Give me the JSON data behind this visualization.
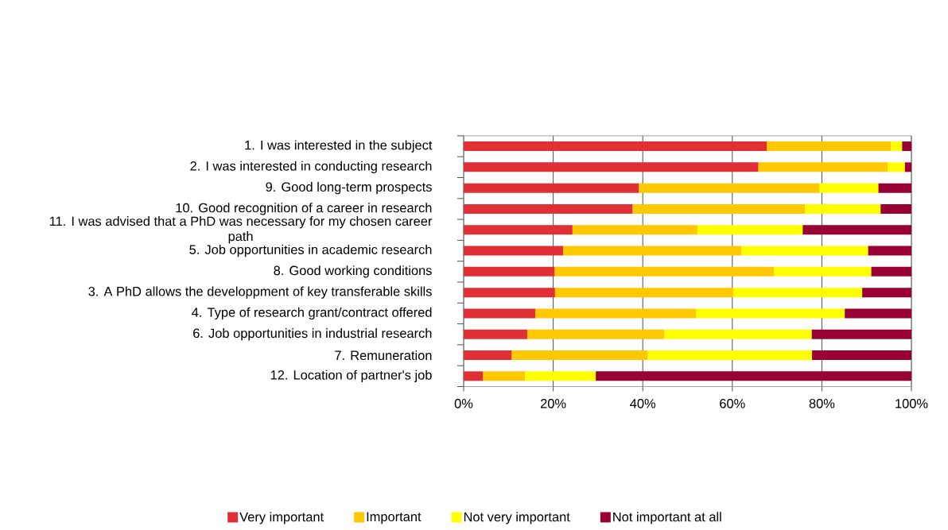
{
  "chart_data": {
    "type": "bar",
    "orientation": "horizontal",
    "stacked": true,
    "categories": [
      "1. I was interested in the subject",
      "2. I was interested in conducting research",
      "9. Good long-term prospects",
      "10. Good recognition of a career in research",
      "11. I was advised that a PhD was necessary for my chosen career path",
      "5. Job opportunities in academic research",
      "8. Good working conditions",
      "3. A PhD allows the developpment of key transferable skills",
      "4. Type of research grant/contract offered",
      "6. Job opportunities in industrial research",
      "7. Remuneration",
      "12. Location of partner's job"
    ],
    "series": [
      {
        "name": "Very important",
        "color": "#e03036",
        "values": [
          67.7,
          65.8,
          39.1,
          37.7,
          24.3,
          22.2,
          20.3,
          20.4,
          16.0,
          14.2,
          10.7,
          4.3
        ]
      },
      {
        "name": "Important",
        "color": "#ffc800",
        "values": [
          27.7,
          28.9,
          40.3,
          38.5,
          27.9,
          39.8,
          49.0,
          39.8,
          35.9,
          30.6,
          30.4,
          9.4
        ]
      },
      {
        "name": "Not very important",
        "color": "#ffff00",
        "values": [
          2.5,
          3.8,
          13.2,
          16.9,
          23.5,
          28.3,
          21.7,
          28.8,
          33.2,
          32.9,
          36.7,
          15.8
        ]
      },
      {
        "name": "Not important at all",
        "color": "#990033",
        "values": [
          2.1,
          1.5,
          7.4,
          6.9,
          24.3,
          9.7,
          9.0,
          11.0,
          14.9,
          22.3,
          22.2,
          70.5
        ]
      }
    ],
    "xlim": [
      0,
      100
    ],
    "xticks": [
      {
        "value": 0,
        "label": "0%"
      },
      {
        "value": 20,
        "label": "20%"
      },
      {
        "value": 40,
        "label": "40%"
      },
      {
        "value": 60,
        "label": "60%"
      },
      {
        "value": 80,
        "label": "80%"
      },
      {
        "value": 100,
        "label": "100%"
      }
    ],
    "grid": "x",
    "legend": "bottom"
  }
}
